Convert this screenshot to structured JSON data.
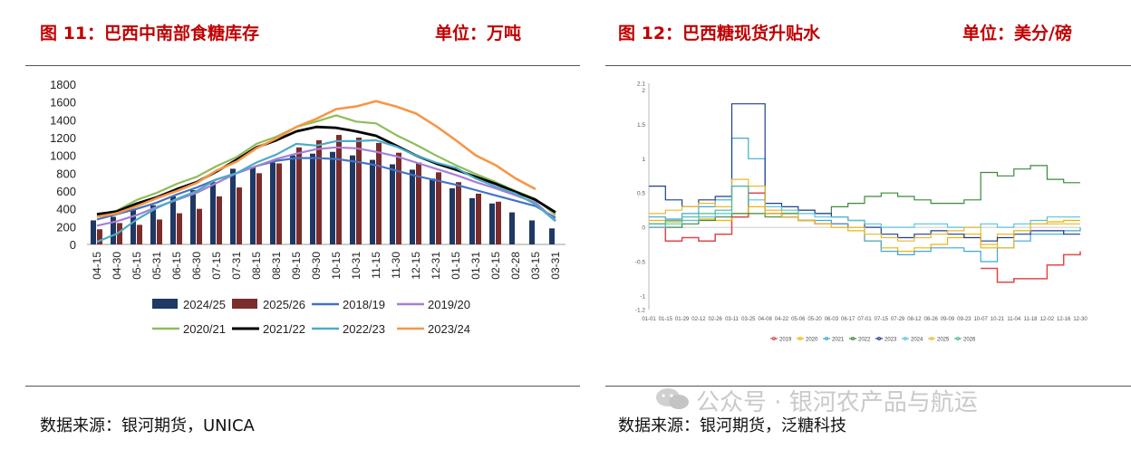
{
  "left": {
    "title": "图 11：巴西中南部食糖库存",
    "unit": "单位：万吨",
    "source": "数据来源：银河期货，UNICA"
  },
  "right": {
    "title": "图 12：巴西糖现货升贴水",
    "unit": "单位：美分/磅",
    "source": "数据来源：银河期货，泛糖科技"
  },
  "watermark": "公众号 · 银河农产品与航运",
  "colors": {
    "title_red": "#c00000",
    "bar_2425": "#1f3864",
    "bar_2526": "#7b2c2c",
    "line_1819": "#4472c4",
    "line_1920": "#a67fd6",
    "line_2021": "#8fbc5a",
    "line_2122": "#000000",
    "line_2223": "#4bacc6",
    "line_2324": "#f79646"
  },
  "chart_data": [
    {
      "type": "bar",
      "title": "巴西中南部食糖库存",
      "ylabel": "万吨",
      "ylim": [
        0,
        1800
      ],
      "yticks": [
        0,
        200,
        400,
        600,
        800,
        1000,
        1200,
        1400,
        1600,
        1800
      ],
      "categories": [
        "04-15",
        "04-30",
        "05-15",
        "05-31",
        "06-15",
        "06-30",
        "07-15",
        "07-31",
        "08-15",
        "08-31",
        "09-15",
        "09-30",
        "10-15",
        "10-31",
        "11-15",
        "11-30",
        "12-15",
        "12-31",
        "01-15",
        "01-31",
        "02-15",
        "02-28",
        "03-15",
        "03-31"
      ],
      "bar_series": [
        {
          "name": "2024/25",
          "color_key": "bar_2425",
          "values": [
            270,
            310,
            390,
            440,
            540,
            610,
            700,
            850,
            870,
            920,
            1000,
            1020,
            1040,
            1000,
            950,
            900,
            840,
            740,
            630,
            520,
            460,
            360,
            270,
            180
          ]
        },
        {
          "name": "2025/26",
          "color_key": "bar_2526",
          "values": [
            170,
            240,
            220,
            280,
            350,
            400,
            540,
            640,
            800,
            910,
            1090,
            1170,
            1230,
            1200,
            1140,
            1030,
            920,
            810,
            700,
            570,
            480,
            null,
            null,
            null
          ]
        }
      ],
      "line_series": [
        {
          "name": "2018/19",
          "color_key": "line_1819",
          "values": [
            280,
            340,
            400,
            470,
            560,
            640,
            730,
            800,
            880,
            940,
            970,
            970,
            960,
            930,
            890,
            830,
            770,
            720,
            670,
            610,
            550,
            490,
            430,
            300
          ]
        },
        {
          "name": "2019/20",
          "color_key": "line_1920",
          "values": [
            210,
            260,
            330,
            420,
            500,
            580,
            690,
            800,
            880,
            960,
            1020,
            1070,
            1090,
            1080,
            1040,
            990,
            920,
            850,
            780,
            700,
            630,
            550,
            470,
            270
          ]
        },
        {
          "name": "2020/21",
          "color_key": "line_2021",
          "values": [
            330,
            380,
            500,
            580,
            680,
            760,
            880,
            980,
            1130,
            1210,
            1320,
            1380,
            1450,
            1380,
            1360,
            1230,
            1120,
            1000,
            890,
            790,
            700,
            600,
            510,
            330
          ]
        },
        {
          "name": "2021/22",
          "color_key": "line_2122",
          "values": [
            340,
            370,
            460,
            530,
            620,
            700,
            820,
            950,
            1090,
            1170,
            1270,
            1320,
            1310,
            1270,
            1220,
            1110,
            1000,
            910,
            840,
            760,
            680,
            590,
            500,
            360
          ]
        },
        {
          "name": "2022/23",
          "color_key": "line_2223",
          "values": [
            30,
            120,
            280,
            410,
            510,
            600,
            730,
            800,
            920,
            1010,
            1130,
            1110,
            1160,
            1160,
            1170,
            1100,
            1000,
            920,
            860,
            740,
            650,
            570,
            450,
            260
          ]
        },
        {
          "name": "2023/24",
          "color_key": "line_2324",
          "values": [
            310,
            350,
            430,
            520,
            600,
            690,
            830,
            930,
            1080,
            1190,
            1320,
            1410,
            1520,
            1550,
            1610,
            1550,
            1470,
            1330,
            1170,
            1000,
            890,
            740,
            620,
            null
          ]
        }
      ],
      "legend": [
        "2024/25",
        "2025/26",
        "2018/19",
        "2019/20",
        "2020/21",
        "2021/22",
        "2022/23",
        "2023/24"
      ],
      "legend_position": "bottom"
    },
    {
      "type": "line",
      "title": "巴西糖现货升贴水",
      "ylabel": "美分/磅",
      "ylim": [
        -1.2,
        2.1
      ],
      "yticks": [
        -1.2,
        -1,
        -0.5,
        0,
        0.5,
        1,
        1.5,
        2,
        2.1
      ],
      "yticklabels": [
        "-1.2",
        "-1",
        "-0.5",
        "0",
        "0.5",
        "1",
        "1.5",
        "2",
        "2.1"
      ],
      "x": [
        "01-01",
        "01-15",
        "01-29",
        "02-12",
        "02-26",
        "03-11",
        "03-25",
        "04-08",
        "04-22",
        "05-06",
        "05-20",
        "06-03",
        "06-17",
        "07-01",
        "07-15",
        "07-29",
        "08-12",
        "08-26",
        "09-09",
        "09-23",
        "10-07",
        "10-21",
        "11-04",
        "11-18",
        "12-02",
        "12-16",
        "12-30"
      ],
      "series": [
        {
          "name": "2019",
          "color": "#e0474c",
          "values": [
            0.0,
            -0.2,
            -0.15,
            -0.2,
            -0.1,
            0.15,
            0.5,
            0.2,
            0.15,
            0.1,
            0.05,
            0.05,
            0.0,
            null,
            null,
            null,
            null,
            null,
            null,
            null,
            -0.6,
            -0.8,
            -0.75,
            -0.75,
            -0.55,
            -0.4,
            -0.35
          ]
        },
        {
          "name": "2020",
          "color": "#f0b400",
          "values": [
            0.1,
            0.08,
            0.1,
            0.12,
            0.1,
            0.2,
            0.3,
            0.25,
            0.2,
            0.1,
            0.05,
            0.0,
            -0.05,
            -0.2,
            -0.3,
            -0.35,
            -0.3,
            -0.25,
            -0.15,
            -0.1,
            -0.3,
            -0.1,
            -0.05,
            0.05,
            0.08,
            0.1,
            0.1
          ]
        },
        {
          "name": "2021",
          "color": "#3ea7d6",
          "values": [
            0.15,
            0.12,
            0.2,
            0.3,
            0.4,
            1.3,
            1.0,
            0.2,
            0.15,
            0.1,
            0.1,
            0.05,
            0.0,
            -0.2,
            -0.35,
            -0.4,
            -0.35,
            -0.3,
            -0.3,
            -0.35,
            -0.5,
            -0.3,
            -0.2,
            -0.1,
            -0.1,
            -0.05,
            0.0
          ]
        },
        {
          "name": "2022",
          "color": "#3a8a3a",
          "values": [
            0.05,
            0.0,
            0.05,
            0.1,
            0.15,
            0.2,
            0.2,
            0.15,
            0.2,
            0.25,
            0.2,
            0.3,
            0.35,
            0.45,
            0.5,
            0.45,
            0.4,
            0.35,
            0.35,
            0.4,
            0.8,
            0.75,
            0.85,
            0.9,
            0.7,
            0.65,
            0.65
          ]
        },
        {
          "name": "2023",
          "color": "#1f3f8f",
          "values": [
            0.6,
            0.4,
            0.3,
            0.4,
            0.45,
            1.8,
            1.8,
            0.35,
            0.3,
            0.25,
            0.2,
            0.15,
            0.1,
            0.0,
            -0.1,
            -0.15,
            -0.1,
            -0.05,
            -0.1,
            -0.15,
            -0.2,
            -0.15,
            -0.1,
            -0.05,
            -0.05,
            -0.1,
            -0.1
          ]
        },
        {
          "name": "2024",
          "color": "#58c2d8",
          "values": [
            0.0,
            0.05,
            0.1,
            0.15,
            0.2,
            0.6,
            0.4,
            0.3,
            0.25,
            0.2,
            0.15,
            0.15,
            0.1,
            0.05,
            0.0,
            0.0,
            0.05,
            0.05,
            0.0,
            0.0,
            0.05,
            0.0,
            0.05,
            0.1,
            0.15,
            0.15,
            0.15
          ]
        },
        {
          "name": "2025",
          "color": "#e8b930",
          "values": [
            0.2,
            0.25,
            0.3,
            0.35,
            0.3,
            0.7,
            0.6,
            0.2,
            0.15,
            0.1,
            0.05,
            0.0,
            0.0,
            -0.1,
            -0.15,
            -0.2,
            -0.15,
            -0.1,
            -0.05,
            0.0,
            -0.25,
            -0.3,
            -0.05,
            0.05,
            0.05,
            0.05,
            0.05
          ]
        },
        {
          "name": "2026",
          "color": "#4fb89a",
          "values": [
            0.05,
            0.1,
            0.15,
            0.2,
            0.25,
            0.6,
            0.3,
            null,
            null,
            null,
            null,
            null,
            null,
            null,
            null,
            null,
            null,
            null,
            null,
            null,
            null,
            null,
            null,
            null,
            null,
            null,
            null
          ]
        }
      ],
      "legend": [
        "2019",
        "2020",
        "2021",
        "2022",
        "2023",
        "2024",
        "2025",
        "2026"
      ],
      "legend_position": "bottom"
    }
  ]
}
